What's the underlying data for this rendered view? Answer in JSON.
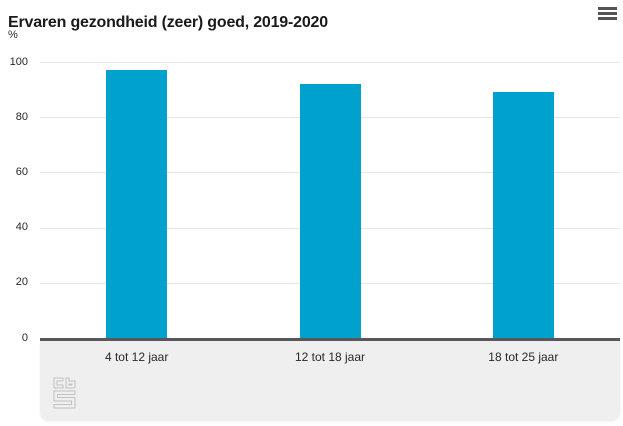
{
  "header": {
    "title": "Ervaren gezondheid (zeer) goed, 2019-2020",
    "menu_icon": "hamburger-context-menu"
  },
  "colors": {
    "bar": "#00a1cd",
    "grid": "#e6e6e6",
    "baseline": "#58585a",
    "footer_bg": "#efefef",
    "title": "#1a1a1a",
    "menu": "#545454",
    "text": "#282828",
    "logo": "#c2c2c2"
  },
  "chart_data": {
    "type": "bar",
    "title": "Ervaren gezondheid (zeer) goed, 2019-2020",
    "xlabel": "",
    "ylabel": "%",
    "categories": [
      "4 tot 12 jaar",
      "12 tot 18 jaar",
      "18 tot 25 jaar"
    ],
    "values": [
      97,
      92,
      89
    ],
    "ylim": [
      0,
      100
    ],
    "yticks": [
      0,
      20,
      40,
      60,
      80,
      100
    ],
    "grid": true,
    "legend": false,
    "footer_logo": "cbs-logo"
  }
}
